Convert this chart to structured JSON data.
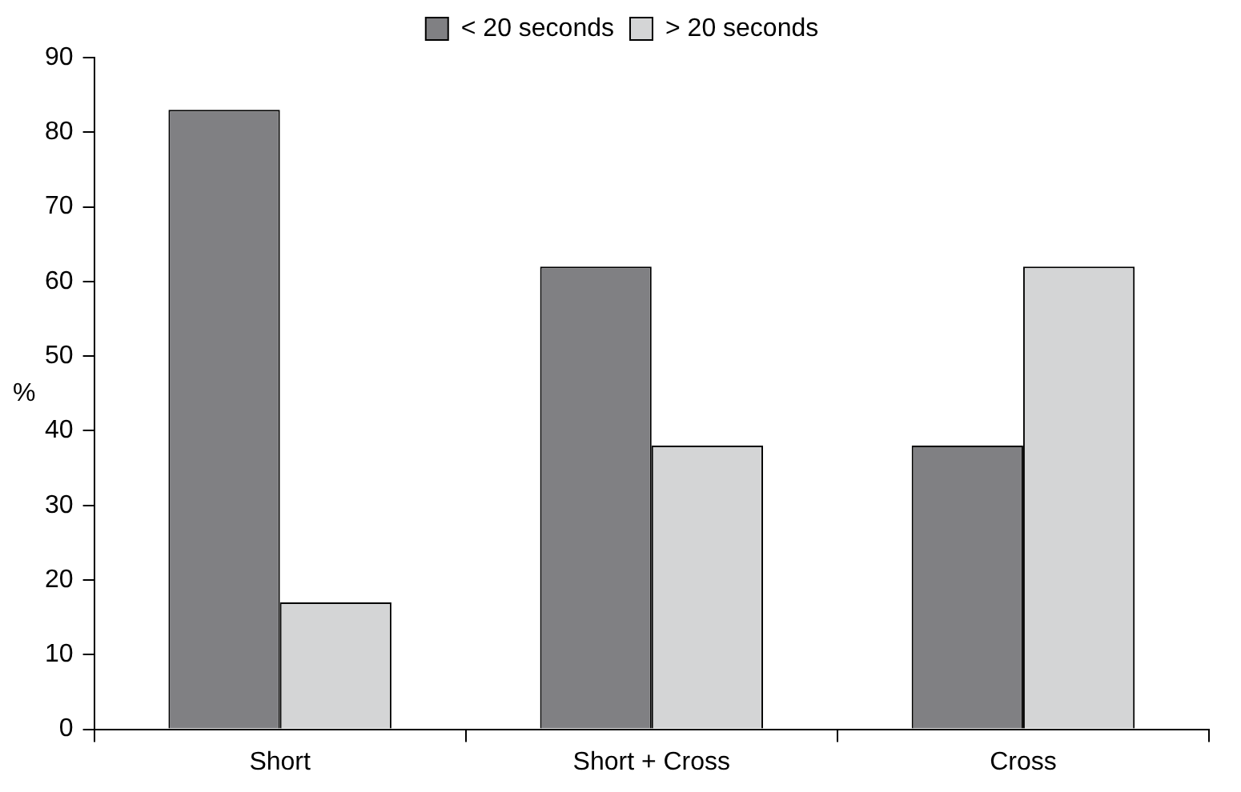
{
  "chart_data": {
    "type": "bar",
    "categories": [
      "Short",
      "Short + Cross",
      "Cross"
    ],
    "ylabel": "%",
    "series": [
      {
        "name": "< 20 seconds",
        "color": "#808083",
        "values": [
          83,
          62,
          38
        ]
      },
      {
        "name": "> 20 seconds",
        "color": "#d4d5d6",
        "values": [
          17,
          38,
          62
        ]
      }
    ],
    "ylim": [
      0,
      90
    ],
    "yticks": [
      0,
      10,
      20,
      30,
      40,
      50,
      60,
      70,
      80,
      90
    ],
    "grid": false,
    "legend": "top"
  }
}
